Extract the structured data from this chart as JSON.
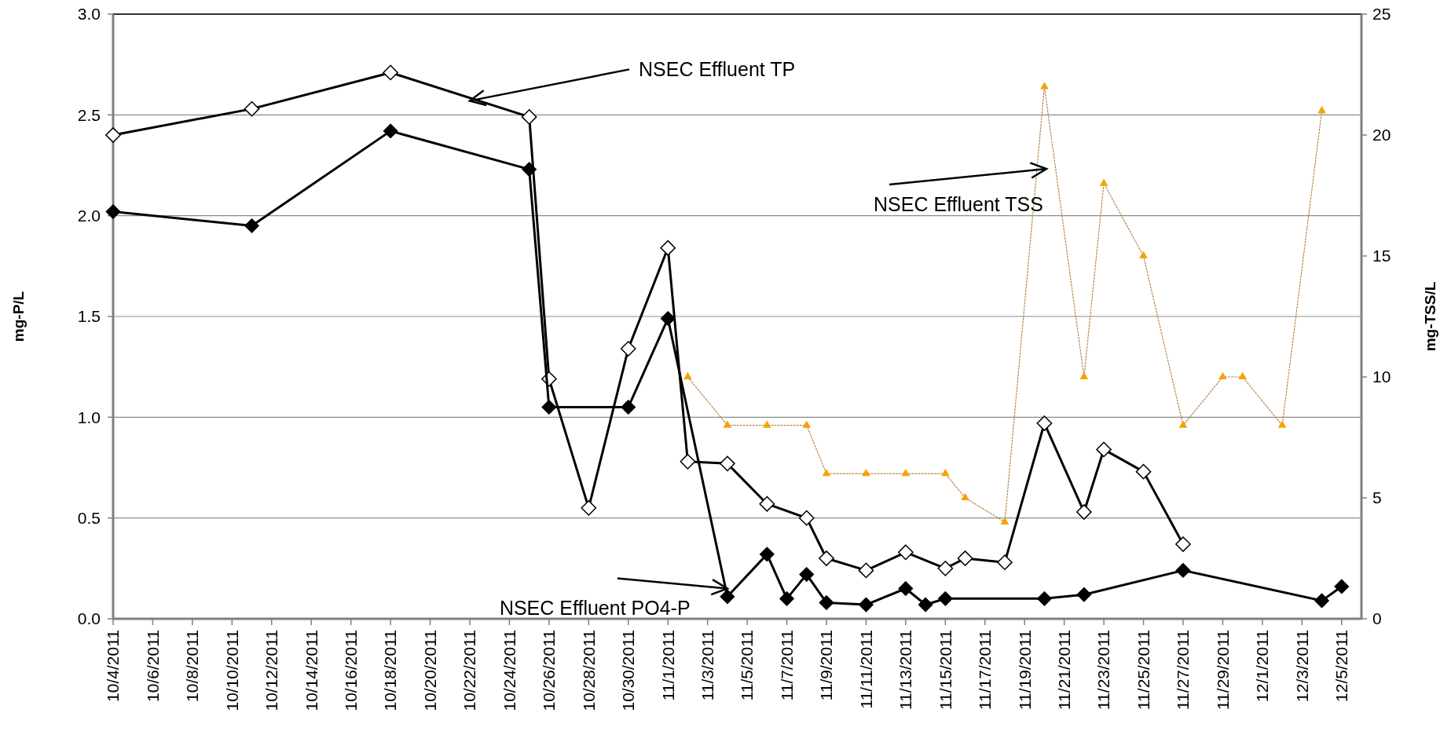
{
  "chart_data": {
    "type": "line",
    "ylabel": "mg-P/L",
    "y2label": "mg-TSS/L",
    "xlim": [
      "2011-10-04",
      "2011-12-06"
    ],
    "xticks": [
      {
        "value": "2011-10-04",
        "label": "10/4/2011"
      },
      {
        "value": "2011-10-06",
        "label": "10/6/2011"
      },
      {
        "value": "2011-10-08",
        "label": "10/8/2011"
      },
      {
        "value": "2011-10-10",
        "label": "10/10/2011"
      },
      {
        "value": "2011-10-12",
        "label": "10/12/2011"
      },
      {
        "value": "2011-10-14",
        "label": "10/14/2011"
      },
      {
        "value": "2011-10-16",
        "label": "10/16/2011"
      },
      {
        "value": "2011-10-18",
        "label": "10/18/2011"
      },
      {
        "value": "2011-10-20",
        "label": "10/20/2011"
      },
      {
        "value": "2011-10-22",
        "label": "10/22/2011"
      },
      {
        "value": "2011-10-24",
        "label": "10/24/2011"
      },
      {
        "value": "2011-10-26",
        "label": "10/26/2011"
      },
      {
        "value": "2011-10-28",
        "label": "10/28/2011"
      },
      {
        "value": "2011-10-30",
        "label": "10/30/2011"
      },
      {
        "value": "2011-11-01",
        "label": "11/1/2011"
      },
      {
        "value": "2011-11-03",
        "label": "11/3/2011"
      },
      {
        "value": "2011-11-05",
        "label": "11/5/2011"
      },
      {
        "value": "2011-11-07",
        "label": "11/7/2011"
      },
      {
        "value": "2011-11-09",
        "label": "11/9/2011"
      },
      {
        "value": "2011-11-11",
        "label": "11/11/2011"
      },
      {
        "value": "2011-11-13",
        "label": "11/13/2011"
      },
      {
        "value": "2011-11-15",
        "label": "11/15/2011"
      },
      {
        "value": "2011-11-17",
        "label": "11/17/2011"
      },
      {
        "value": "2011-11-19",
        "label": "11/19/2011"
      },
      {
        "value": "2011-11-21",
        "label": "11/21/2011"
      },
      {
        "value": "2011-11-23",
        "label": "11/23/2011"
      },
      {
        "value": "2011-11-25",
        "label": "11/25/2011"
      },
      {
        "value": "2011-11-27",
        "label": "11/27/2011"
      },
      {
        "value": "2011-11-29",
        "label": "11/29/2011"
      },
      {
        "value": "2011-12-01",
        "label": "12/1/2011"
      },
      {
        "value": "2011-12-03",
        "label": "12/3/2011"
      },
      {
        "value": "2011-12-05",
        "label": "12/5/2011"
      }
    ],
    "ylim": [
      0,
      3
    ],
    "yticks": [
      {
        "value": 0,
        "label": "0.0"
      },
      {
        "value": 0.5,
        "label": "0.5"
      },
      {
        "value": 1,
        "label": "1.0"
      },
      {
        "value": 1.5,
        "label": "1.5"
      },
      {
        "value": 2,
        "label": "2.0"
      },
      {
        "value": 2.5,
        "label": "2.5"
      },
      {
        "value": 3,
        "label": "3.0"
      }
    ],
    "y2lim": [
      0,
      25
    ],
    "y2ticks": [
      0,
      5,
      10,
      15,
      20,
      25
    ],
    "grid": "y",
    "line_style": "solid",
    "series": [
      {
        "color": "#000000",
        "marker": "diamond",
        "x": [
          "2011-10-04",
          "2011-10-11",
          "2011-10-18",
          "2011-10-25",
          "2011-10-26",
          "2011-10-28",
          "2011-10-30",
          "2011-11-01",
          "2011-11-02",
          "2011-11-04",
          "2011-11-06",
          "2011-11-08",
          "2011-11-09",
          "2011-11-11",
          "2011-11-13",
          "2011-11-15",
          "2011-11-16",
          "2011-11-18",
          "2011-11-20",
          "2011-11-22",
          "2011-11-23",
          "2011-11-25",
          "2011-11-27"
        ],
        "values": [
          2.4,
          2.53,
          2.71,
          2.49,
          1.19,
          0.55,
          1.34,
          1.84,
          0.78,
          0.77,
          0.57,
          0.5,
          0.3,
          0.24,
          0.33,
          0.25,
          0.3,
          0.28,
          0.97,
          0.53,
          0.84,
          0.73,
          0.37
        ]
      },
      {
        "color": "#000000",
        "marker": "diamond",
        "x": [
          "2011-10-04",
          "2011-10-11",
          "2011-10-18",
          "2011-10-25",
          "2011-10-26",
          "2011-10-30",
          "2011-11-01",
          "2011-11-04",
          "2011-11-06",
          "2011-11-07",
          "2011-11-08",
          "2011-11-09",
          "2011-11-11",
          "2011-11-13",
          "2011-11-14",
          "2011-11-15",
          "2011-11-20",
          "2011-11-22",
          "2011-11-27",
          "2011-12-04",
          "2011-12-05"
        ],
        "values": [
          2.02,
          1.95,
          2.42,
          2.23,
          1.05,
          1.05,
          1.49,
          0.11,
          0.32,
          0.1,
          0.22,
          0.08,
          0.07,
          0.15,
          0.07,
          0.1,
          0.1,
          0.12,
          0.24,
          0.09,
          0.16
        ]
      },
      {
        "color": "#f5a300",
        "marker": "triangle",
        "line_style": "dotted",
        "axis": "y2",
        "x": [
          "2011-11-02",
          "2011-11-04",
          "2011-11-06",
          "2011-11-08",
          "2011-11-09",
          "2011-11-11",
          "2011-11-13",
          "2011-11-15",
          "2011-11-16",
          "2011-11-18",
          "2011-11-20",
          "2011-11-22",
          "2011-11-23",
          "2011-11-25",
          "2011-11-27",
          "2011-11-29",
          "2011-11-30",
          "2011-12-02",
          "2011-12-04"
        ],
        "values": [
          10,
          8,
          8,
          8,
          6,
          6,
          6,
          6,
          5,
          4,
          22,
          10,
          18,
          15,
          8,
          10,
          10,
          8,
          21
        ]
      }
    ],
    "annotations": [
      {
        "text": "NSEC Effluent TP",
        "x": "2011-10-22",
        "y": 2.57
      },
      "NSEC Effluent TSS",
      {
        "text": "NSEC Effluent PO4-P",
        "x": "2011-11-04",
        "y": 0.15
      }
    ]
  }
}
